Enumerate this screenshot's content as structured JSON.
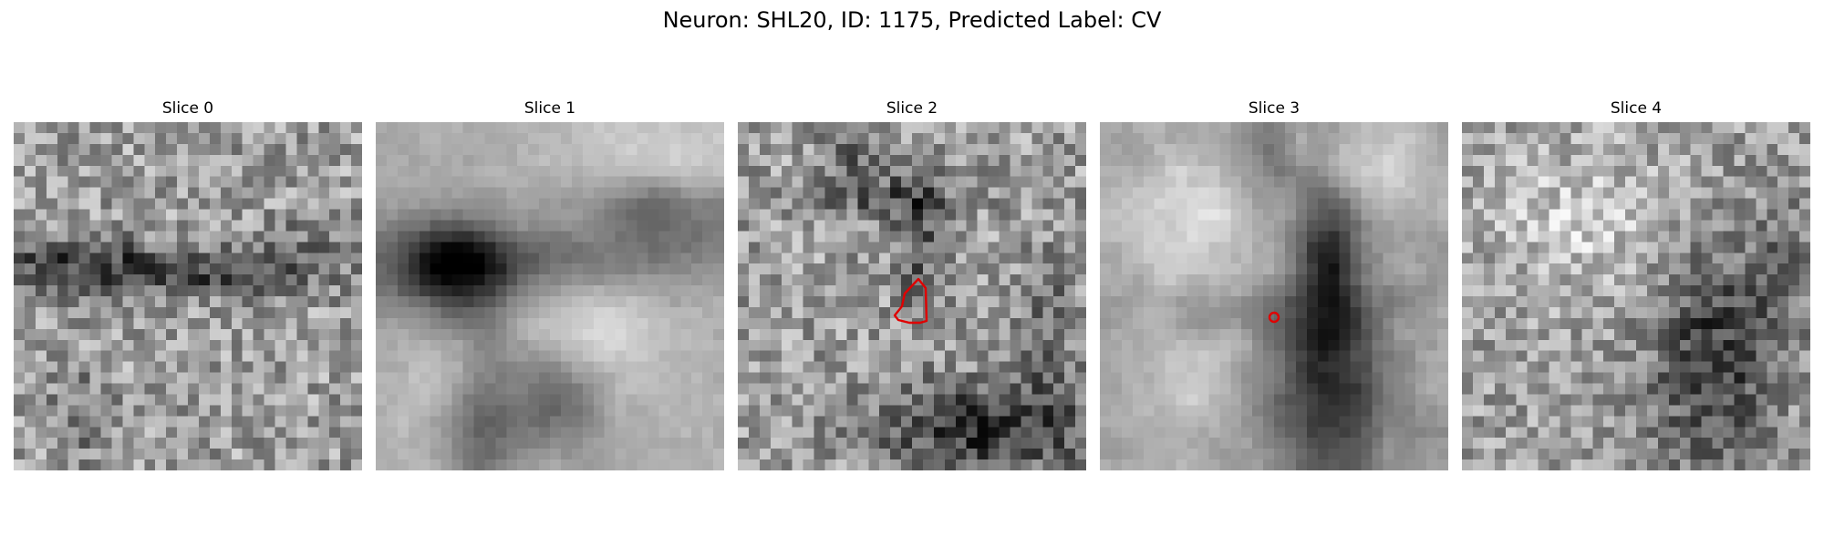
{
  "figure": {
    "title": "Neuron: SHL20, ID: 1175, Predicted Label: CV"
  },
  "panels": [
    {
      "title": "Slice 0"
    },
    {
      "title": "Slice 1"
    },
    {
      "title": "Slice 2"
    },
    {
      "title": "Slice 3"
    },
    {
      "title": "Slice 4"
    }
  ],
  "colors": {
    "annotation": "#e00000",
    "background": "#ffffff"
  }
}
